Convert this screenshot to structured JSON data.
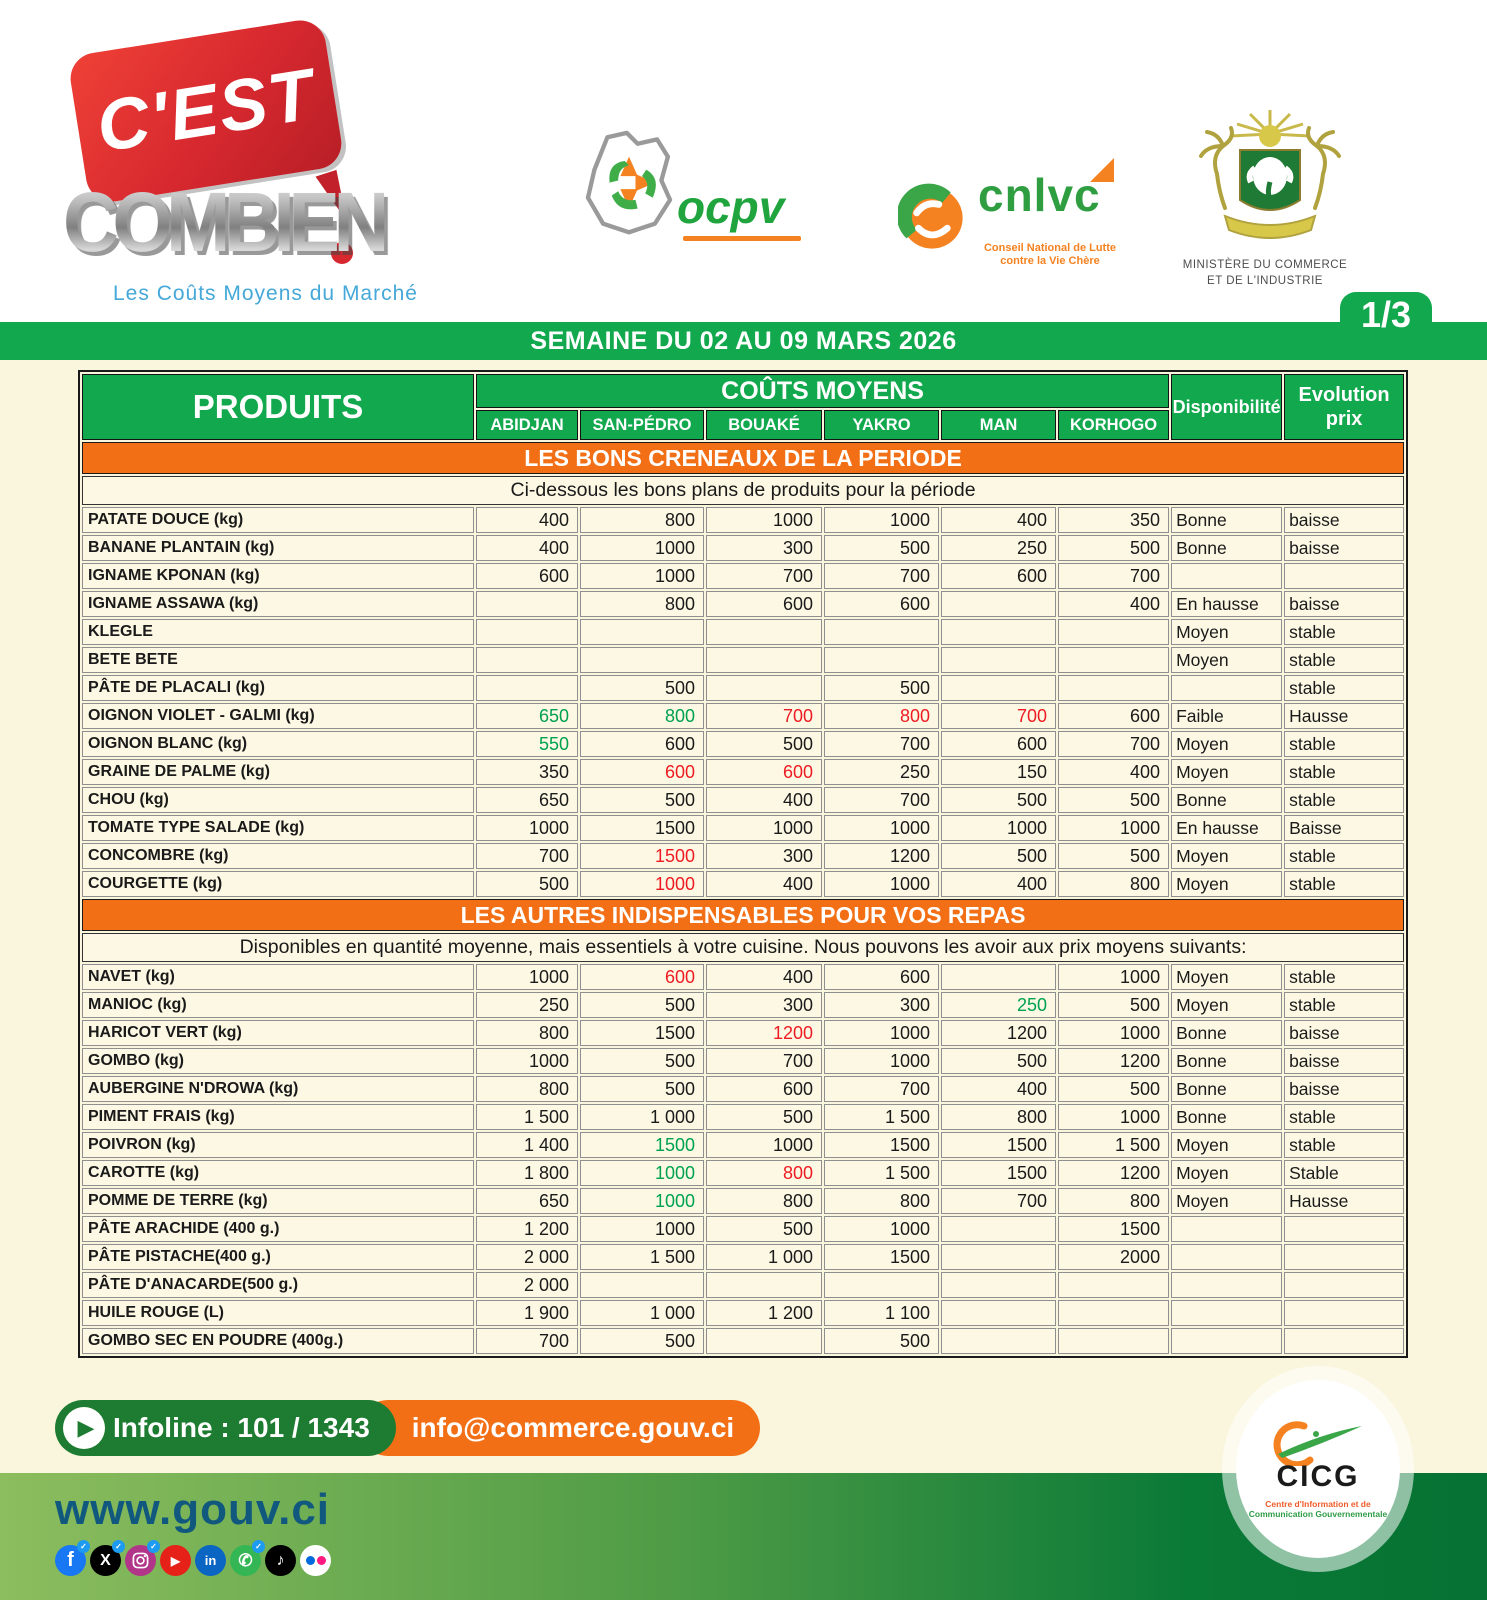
{
  "page": {
    "week_banner": "SEMAINE DU 02 AU 09 MARS 2026",
    "page_indicator": "1/3"
  },
  "branding": {
    "cest": "C'EST",
    "combien": "COMBIEN",
    "tagline": "Les Coûts Moyens du Marché",
    "ocpv": {
      "name": "ocpv"
    },
    "cnlvc": {
      "name": "cnlvc",
      "line1": "Conseil National de Lutte",
      "line2": "contre la Vie Chère"
    },
    "ministry": {
      "line1": "MINISTÈRE DU  COMMERCE",
      "line2": "ET DE L'INDUSTRIE"
    }
  },
  "table": {
    "col_produits": "PRODUITS",
    "col_couts": "COÛTS MOYENS",
    "cities": [
      "ABIDJAN",
      "SAN-PÉDRO",
      "BOUAKÉ",
      "YAKRO",
      "MAN",
      "KORHOGO"
    ],
    "col_dispo": "Disponibilité",
    "col_evo_1": "Evolution",
    "col_evo_2": "prix",
    "sections": [
      {
        "band": "LES BONS CRENEAUX DE LA PERIODE",
        "subtitle": "Ci-dessous les bons plans de produits pour la période",
        "rows": [
          {
            "produit": "PATATE DOUCE (kg)",
            "p": [
              "400",
              "800",
              "1000",
              "1000",
              "400",
              "350"
            ],
            "pc": [
              "",
              "",
              "",
              "",
              "",
              ""
            ],
            "dispo": "Bonne",
            "evo": "baisse"
          },
          {
            "produit": "BANANE PLANTAIN (kg)",
            "p": [
              "400",
              "1000",
              "300",
              "500",
              "250",
              "500"
            ],
            "pc": [
              "",
              "",
              "",
              "",
              "",
              ""
            ],
            "dispo": "Bonne",
            "evo": "baisse"
          },
          {
            "produit": "IGNAME KPONAN  (kg)",
            "p": [
              "600",
              "1000",
              "700",
              "700",
              "600",
              "700"
            ],
            "pc": [
              "",
              "",
              "",
              "",
              "",
              ""
            ],
            "dispo": "",
            "evo": ""
          },
          {
            "produit": "IGNAME ASSAWA (kg)",
            "p": [
              "",
              "800",
              "600",
              "600",
              "",
              "400"
            ],
            "pc": [
              "",
              "",
              "",
              "",
              "",
              ""
            ],
            "dispo": "En hausse",
            "evo": "baisse"
          },
          {
            "produit": "KLEGLE",
            "p": [
              "",
              "",
              "",
              "",
              "",
              ""
            ],
            "pc": [
              "",
              "",
              "",
              "",
              "",
              ""
            ],
            "dispo": "Moyen",
            "evo": "stable"
          },
          {
            "produit": "BETE BETE",
            "p": [
              "",
              "",
              "",
              "",
              "",
              ""
            ],
            "pc": [
              "",
              "",
              "",
              "",
              "",
              ""
            ],
            "dispo": "Moyen",
            "evo": "stable"
          },
          {
            "produit": "PÂTE DE PLACALI (kg)",
            "p": [
              "",
              "500",
              "",
              "500",
              "",
              ""
            ],
            "pc": [
              "",
              "",
              "",
              "",
              "",
              ""
            ],
            "dispo": "",
            "evo": "stable"
          },
          {
            "produit": "OIGNON VIOLET - GALMI (kg)",
            "p": [
              "650",
              "800",
              "700",
              "800",
              "700",
              "600"
            ],
            "pc": [
              "g",
              "g",
              "r",
              "r",
              "r",
              ""
            ],
            "dispo": "Faible",
            "evo": "Hausse"
          },
          {
            "produit": "OIGNON BLANC  (kg)",
            "p": [
              "550",
              "600",
              "500",
              "700",
              "600",
              "700"
            ],
            "pc": [
              "g",
              "",
              "",
              "",
              "",
              ""
            ],
            "dispo": "Moyen",
            "evo": "stable"
          },
          {
            "produit": "GRAINE DE PALME  (kg)",
            "p": [
              "350",
              "600",
              "600",
              "250",
              "150",
              "400"
            ],
            "pc": [
              "",
              "r",
              "r",
              "",
              "",
              ""
            ],
            "dispo": "Moyen",
            "evo": "stable"
          },
          {
            "produit": "CHOU (kg)",
            "p": [
              "650",
              "500",
              "400",
              "700",
              "500",
              "500"
            ],
            "pc": [
              "",
              "",
              "",
              "",
              "",
              ""
            ],
            "dispo": "Bonne",
            "evo": "stable"
          },
          {
            "produit": "TOMATE TYPE SALADE (kg)",
            "p": [
              "1000",
              "1500",
              "1000",
              "1000",
              "1000",
              "1000"
            ],
            "pc": [
              "",
              "",
              "",
              "",
              "",
              ""
            ],
            "dispo": "En hausse",
            "evo": "Baisse"
          },
          {
            "produit": "CONCOMBRE (kg)",
            "p": [
              "700",
              "1500",
              "300",
              "1200",
              "500",
              "500"
            ],
            "pc": [
              "",
              "r",
              "",
              "",
              "",
              ""
            ],
            "dispo": "Moyen",
            "evo": "stable"
          },
          {
            "produit": "COURGETTE (kg)",
            "p": [
              "500",
              "1000",
              "400",
              "1000",
              "400",
              "800"
            ],
            "pc": [
              "",
              "r",
              "",
              "",
              "",
              ""
            ],
            "dispo": "Moyen",
            "evo": "stable"
          }
        ]
      },
      {
        "band": "LES AUTRES INDISPENSABLES POUR VOS REPAS",
        "subtitle": "Disponibles en quantité moyenne, mais essentiels à votre cuisine. Nous pouvons les avoir aux prix moyens suivants:",
        "rows": [
          {
            "produit": "NAVET (kg)",
            "p": [
              "1000",
              "600",
              "400",
              "600",
              "",
              "1000"
            ],
            "pc": [
              "",
              "r",
              "",
              "",
              "",
              ""
            ],
            "dispo": "Moyen",
            "evo": "stable"
          },
          {
            "produit": "MANIOC (kg)",
            "p": [
              "250",
              "500",
              "300",
              "300",
              "250",
              "500"
            ],
            "pc": [
              "",
              "",
              "",
              "",
              "g",
              ""
            ],
            "dispo": "Moyen",
            "evo": "stable"
          },
          {
            "produit": "HARICOT VERT (kg)",
            "p": [
              "800",
              "1500",
              "1200",
              "1000",
              "1200",
              "1000"
            ],
            "pc": [
              "",
              "",
              "r",
              "",
              "",
              ""
            ],
            "dispo": "Bonne",
            "evo": "baisse"
          },
          {
            "produit": "GOMBO (kg)",
            "p": [
              "1000",
              "500",
              "700",
              "1000",
              "500",
              "1200"
            ],
            "pc": [
              "",
              "",
              "",
              "",
              "",
              ""
            ],
            "dispo": "Bonne",
            "evo": "baisse"
          },
          {
            "produit": "AUBERGINE N'DROWA  (kg)",
            "p": [
              "800",
              "500",
              "600",
              "700",
              "400",
              "500"
            ],
            "pc": [
              "",
              "",
              "",
              "",
              "",
              ""
            ],
            "dispo": "Bonne",
            "evo": "baisse"
          },
          {
            "produit": "PIMENT FRAIS (kg)",
            "p": [
              "1 500",
              "1 000",
              "500",
              "1 500",
              "800",
              "1000"
            ],
            "pc": [
              "",
              "",
              "",
              "",
              "",
              ""
            ],
            "dispo": "Bonne",
            "evo": "stable"
          },
          {
            "produit": "POIVRON (kg)",
            "p": [
              "1 400",
              "1500",
              "1000",
              "1500",
              "1500",
              "1 500"
            ],
            "pc": [
              "",
              "g",
              "",
              "",
              "",
              ""
            ],
            "dispo": "Moyen",
            "evo": "stable"
          },
          {
            "produit": "CAROTTE (kg)",
            "p": [
              "1 800",
              "1000",
              "800",
              "1 500",
              "1500",
              "1200"
            ],
            "pc": [
              "",
              "g",
              "r",
              "",
              "",
              ""
            ],
            "dispo": "Moyen",
            "evo": "Stable"
          },
          {
            "produit": "POMME DE TERRE (kg)",
            "p": [
              "650",
              "1000",
              "800",
              "800",
              "700",
              "800"
            ],
            "pc": [
              "",
              "g",
              "",
              "",
              "",
              ""
            ],
            "dispo": "Moyen",
            "evo": "Hausse"
          },
          {
            "produit": "PÂTE ARACHIDE (400 g.)",
            "p": [
              "1 200",
              "1000",
              "500",
              "1000",
              "",
              "1500"
            ],
            "pc": [
              "",
              "",
              "",
              "",
              "",
              ""
            ],
            "dispo": "",
            "evo": ""
          },
          {
            "produit": "PÂTE PISTACHE(400 g.)",
            "p": [
              "2 000",
              "1 500",
              "1 000",
              "1500",
              "",
              "2000"
            ],
            "pc": [
              "",
              "",
              "",
              "",
              "",
              ""
            ],
            "dispo": "",
            "evo": ""
          },
          {
            "produit": "PÂTE D'ANACARDE(500 g.)",
            "p": [
              "2 000",
              "",
              "",
              "",
              "",
              ""
            ],
            "pc": [
              "",
              "",
              "",
              "",
              "",
              ""
            ],
            "dispo": "",
            "evo": ""
          },
          {
            "produit": "HUILE ROUGE (L)",
            "p": [
              "1 900",
              "1 000",
              "1 200",
              "1 100",
              "",
              ""
            ],
            "pc": [
              "",
              "",
              "",
              "",
              "",
              ""
            ],
            "dispo": "",
            "evo": ""
          },
          {
            "produit": "GOMBO SEC EN POUDRE (400g.)",
            "p": [
              "700",
              "500",
              "",
              "500",
              "",
              ""
            ],
            "pc": [
              "",
              "",
              "",
              "",
              "",
              ""
            ],
            "dispo": "",
            "evo": ""
          }
        ]
      }
    ]
  },
  "footer": {
    "infoline_label": "Infoline : 101 / 1343",
    "email": "info@commerce.gouv.ci",
    "website": "www.gouv.ci",
    "social": [
      "facebook",
      "x",
      "instagram",
      "youtube",
      "linkedin",
      "whatsapp",
      "tiktok",
      "flickr"
    ],
    "cicg": {
      "name": "CICG",
      "line1": "Centre d'Information et de",
      "line2": "Communication Gouvernementale"
    }
  },
  "colors": {
    "header_green": "#12a84e",
    "band_orange": "#f36f15",
    "price_green": "#00a14f",
    "price_red": "#ed1c24",
    "cream_bg": "#faf6dd",
    "infoline_green": "#1d7c31",
    "tagline_blue": "#45a8d8",
    "website_blue": "#11587f"
  }
}
